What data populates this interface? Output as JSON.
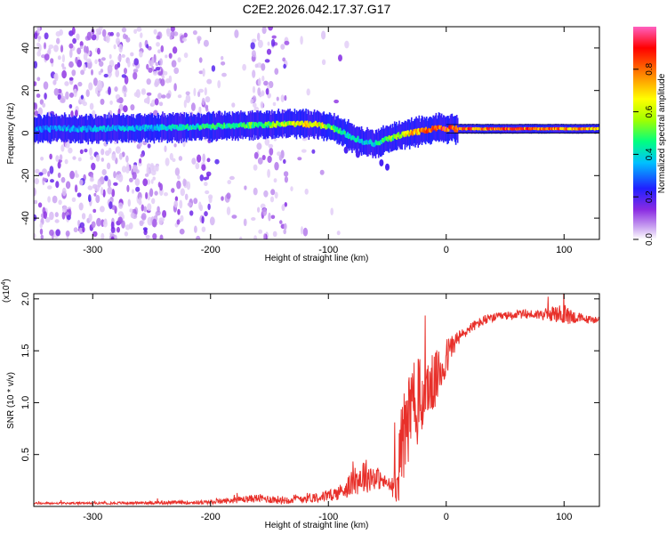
{
  "chart_data": [
    {
      "type": "heatmap",
      "title": "C2E2.2026.042.17.37.G17",
      "xlabel": "Height of straight line (km)",
      "ylabel": "Frequency (Hz)",
      "xlim": [
        -350,
        130
      ],
      "ylim": [
        -50,
        50
      ],
      "xticks": [
        -300,
        -200,
        -100,
        0,
        100
      ],
      "xtick_labels": [
        "-300",
        "-200",
        "-100",
        "0",
        "100"
      ],
      "yticks": [
        -40,
        -20,
        0,
        20,
        40
      ],
      "ytick_labels": [
        "-40",
        "-20",
        "0",
        "20",
        "40"
      ],
      "colorbar": {
        "label": "Normalized spectral amplitude",
        "range": [
          0,
          1
        ],
        "ticks": [
          0.0,
          0.2,
          0.4,
          0.6,
          0.8
        ],
        "tick_labels": [
          "0.0",
          "0.2",
          "0.4",
          "0.6",
          "0.8"
        ],
        "colors": [
          "#ffffff",
          "#c8a0f0",
          "#8a2be2",
          "#2020ff",
          "#00c0ff",
          "#00ff80",
          "#a0ff00",
          "#ffff00",
          "#ff8000",
          "#ff0000",
          "#ff60c0"
        ]
      },
      "ridge": {
        "x": [
          -350,
          -300,
          -250,
          -200,
          -150,
          -130,
          -110,
          -100,
          -90,
          -80,
          -70,
          -60,
          -50,
          -40,
          -30,
          -20,
          -10,
          0,
          20,
          60,
          100,
          130
        ],
        "freq": [
          2,
          2,
          2.5,
          3,
          4,
          4.5,
          4,
          3,
          1,
          -2,
          -4,
          -5,
          -3,
          -1,
          0,
          1,
          2,
          2,
          2,
          2,
          2,
          2
        ],
        "amplitude": [
          0.35,
          0.4,
          0.4,
          0.5,
          0.55,
          0.7,
          0.75,
          0.6,
          0.5,
          0.45,
          0.4,
          0.45,
          0.55,
          0.65,
          0.75,
          0.85,
          0.9,
          0.95,
          0.9,
          0.9,
          0.85,
          0.8
        ]
      },
      "noise_bands": [
        {
          "x": [
            -350,
            -240
          ],
          "density": 0.55
        },
        {
          "x": [
            -240,
            -200
          ],
          "density": 0.35
        },
        {
          "x": [
            -200,
            -165
          ],
          "density": 0.08
        },
        {
          "x": [
            -165,
            -135
          ],
          "density": 0.4
        },
        {
          "x": [
            -135,
            -80
          ],
          "density": 0.04
        }
      ]
    },
    {
      "type": "line",
      "xlabel": "Height of straight line (km)",
      "ylabel": "SNR (10 * v/v)",
      "y_multiplier": "(x10",
      "y_multiplier_exp": "4",
      "y_multiplier_close": ")",
      "xlim": [
        -350,
        130
      ],
      "ylim": [
        0,
        2.05
      ],
      "xticks": [
        -300,
        -200,
        -100,
        0,
        100
      ],
      "xtick_labels": [
        "-300",
        "-200",
        "-100",
        "0",
        "100"
      ],
      "yticks": [
        0.5,
        1.0,
        1.5,
        2.0
      ],
      "ytick_labels": [
        "0.5",
        "1.0",
        "1.5",
        "2.0"
      ],
      "series": [
        {
          "name": "SNR",
          "color": "#e8302a",
          "x": [
            -350,
            -300,
            -250,
            -200,
            -180,
            -160,
            -140,
            -120,
            -100,
            -90,
            -80,
            -70,
            -60,
            -50,
            -45,
            -40,
            -35,
            -30,
            -25,
            -20,
            -15,
            -10,
            -5,
            0,
            5,
            10,
            15,
            20,
            30,
            40,
            60,
            80,
            100,
            110,
            120,
            130
          ],
          "values": [
            0.03,
            0.03,
            0.035,
            0.04,
            0.06,
            0.08,
            0.06,
            0.08,
            0.1,
            0.14,
            0.22,
            0.3,
            0.28,
            0.22,
            0.18,
            0.4,
            0.75,
            0.9,
            1.0,
            1.05,
            1.15,
            1.2,
            1.3,
            1.42,
            1.55,
            1.62,
            1.66,
            1.72,
            1.78,
            1.82,
            1.85,
            1.85,
            1.85,
            1.82,
            1.8,
            1.8
          ],
          "jitter": [
            0.01,
            0.01,
            0.015,
            0.02,
            0.03,
            0.04,
            0.04,
            0.05,
            0.05,
            0.08,
            0.12,
            0.18,
            0.12,
            0.06,
            0.1,
            0.4,
            0.5,
            0.5,
            0.45,
            0.35,
            0.3,
            0.28,
            0.25,
            0.2,
            0.12,
            0.08,
            0.06,
            0.05,
            0.05,
            0.04,
            0.04,
            0.05,
            0.1,
            0.06,
            0.04,
            0.03
          ]
        }
      ]
    }
  ]
}
